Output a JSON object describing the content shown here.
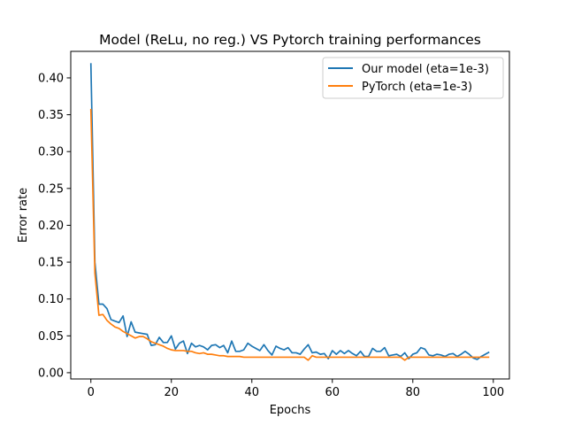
{
  "chart_data": {
    "type": "line",
    "title": "Model (ReLu, no reg.) VS Pytorch training performances",
    "xlabel": "Epochs",
    "ylabel": "Error rate",
    "xlim": [
      -5,
      104
    ],
    "ylim": [
      -0.0085,
      0.436
    ],
    "xticks": [
      0,
      20,
      40,
      60,
      80,
      100
    ],
    "yticks": [
      0.0,
      0.05,
      0.1,
      0.15,
      0.2,
      0.25,
      0.3,
      0.35,
      0.4
    ],
    "xtick_labels": [
      "0",
      "20",
      "40",
      "60",
      "80",
      "100"
    ],
    "ytick_labels": [
      "0.00",
      "0.05",
      "0.10",
      "0.15",
      "0.20",
      "0.25",
      "0.30",
      "0.35",
      "0.40"
    ],
    "grid": false,
    "legend_position": "top-right",
    "series": [
      {
        "name": "Our model (eta=1e-3)",
        "color": "#1f77b4",
        "values": [
          0.42,
          0.15,
          0.093,
          0.093,
          0.087,
          0.072,
          0.07,
          0.068,
          0.077,
          0.049,
          0.069,
          0.055,
          0.054,
          0.053,
          0.052,
          0.037,
          0.038,
          0.048,
          0.041,
          0.041,
          0.05,
          0.032,
          0.04,
          0.043,
          0.026,
          0.04,
          0.035,
          0.037,
          0.035,
          0.031,
          0.037,
          0.038,
          0.034,
          0.037,
          0.027,
          0.043,
          0.029,
          0.029,
          0.031,
          0.04,
          0.036,
          0.033,
          0.03,
          0.038,
          0.03,
          0.024,
          0.036,
          0.033,
          0.031,
          0.034,
          0.027,
          0.027,
          0.025,
          0.032,
          0.038,
          0.027,
          0.028,
          0.025,
          0.026,
          0.019,
          0.03,
          0.025,
          0.03,
          0.026,
          0.03,
          0.026,
          0.023,
          0.029,
          0.022,
          0.022,
          0.033,
          0.029,
          0.029,
          0.034,
          0.023,
          0.024,
          0.025,
          0.022,
          0.027,
          0.019,
          0.025,
          0.027,
          0.034,
          0.032,
          0.024,
          0.023,
          0.025,
          0.024,
          0.022,
          0.025,
          0.026,
          0.022,
          0.025,
          0.029,
          0.025,
          0.02,
          0.018,
          0.022,
          0.025,
          0.028
        ]
      },
      {
        "name": "PyTorch (eta=1e-3)",
        "color": "#ff7f0e",
        "values": [
          0.358,
          0.135,
          0.078,
          0.079,
          0.071,
          0.066,
          0.062,
          0.06,
          0.056,
          0.053,
          0.05,
          0.047,
          0.049,
          0.049,
          0.046,
          0.042,
          0.04,
          0.038,
          0.036,
          0.033,
          0.031,
          0.03,
          0.03,
          0.03,
          0.029,
          0.029,
          0.027,
          0.026,
          0.027,
          0.025,
          0.025,
          0.024,
          0.023,
          0.023,
          0.022,
          0.022,
          0.022,
          0.022,
          0.021,
          0.021,
          0.021,
          0.021,
          0.021,
          0.021,
          0.021,
          0.021,
          0.021,
          0.021,
          0.021,
          0.021,
          0.021,
          0.021,
          0.021,
          0.021,
          0.017,
          0.023,
          0.021,
          0.021,
          0.021,
          0.021,
          0.021,
          0.021,
          0.021,
          0.021,
          0.021,
          0.021,
          0.021,
          0.021,
          0.021,
          0.021,
          0.021,
          0.021,
          0.021,
          0.021,
          0.021,
          0.021,
          0.021,
          0.021,
          0.017,
          0.021,
          0.021,
          0.021,
          0.021,
          0.021,
          0.021,
          0.021,
          0.021,
          0.021,
          0.021,
          0.021,
          0.021,
          0.021,
          0.021,
          0.021,
          0.021,
          0.021,
          0.021,
          0.021,
          0.021,
          0.021
        ]
      }
    ]
  }
}
